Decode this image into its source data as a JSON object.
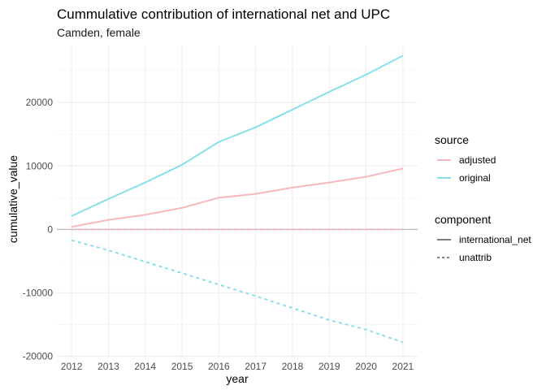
{
  "chart_data": {
    "type": "line",
    "title": "Cummulative contribution of international net and UPC",
    "subtitle": "Camden, female",
    "xlabel": "year",
    "ylabel": "cumulative_value",
    "x": [
      2012,
      2013,
      2014,
      2015,
      2016,
      2017,
      2018,
      2019,
      2020,
      2021
    ],
    "x_ticks": [
      "2012",
      "2013",
      "2014",
      "2015",
      "2016",
      "2017",
      "2018",
      "2019",
      "2020",
      "2021"
    ],
    "y_ticks": [
      "-20000",
      "-10000",
      "0",
      "10000",
      "20000"
    ],
    "y_tick_values": [
      -20000,
      -10000,
      0,
      10000,
      20000
    ],
    "ylim": [
      -20200,
      29000
    ],
    "xlim": [
      2011.6,
      2021.4
    ],
    "grid": true,
    "zero_line": true,
    "legend_placement": "right",
    "legends": [
      {
        "title": "source",
        "entries": [
          {
            "label": "adjusted",
            "color": "#F8B8BB",
            "dash": "solid"
          },
          {
            "label": "original",
            "color": "#89E0E7",
            "dash": "solid"
          }
        ]
      },
      {
        "title": "component",
        "entries": [
          {
            "label": "international_net",
            "color": "#7f7f7f",
            "dash": "solid"
          },
          {
            "label": "unattrib",
            "color": "#7f7f7f",
            "dash": "dashed"
          }
        ]
      }
    ],
    "series": [
      {
        "source": "adjusted",
        "component": "international_net",
        "color": "#F8B8BB",
        "dash": "solid",
        "values": [
          400,
          1500,
          2300,
          3400,
          5000,
          5600,
          6600,
          7400,
          8300,
          9600
        ]
      },
      {
        "source": "original",
        "component": "international_net",
        "color": "#89E0E7",
        "dash": "solid",
        "values": [
          2100,
          4800,
          7400,
          10200,
          13800,
          16100,
          18900,
          21700,
          24400,
          27400
        ]
      },
      {
        "source": "adjusted",
        "component": "unattrib",
        "color": "#F8B8BB",
        "dash": "dashed",
        "values": [
          0,
          0,
          0,
          0,
          0,
          0,
          0,
          0,
          0,
          0
        ]
      },
      {
        "source": "original",
        "component": "unattrib",
        "color": "#89E0E7",
        "dash": "dashed",
        "values": [
          -1700,
          -3300,
          -5100,
          -6900,
          -8700,
          -10500,
          -12400,
          -14300,
          -15800,
          -17800
        ]
      }
    ]
  }
}
